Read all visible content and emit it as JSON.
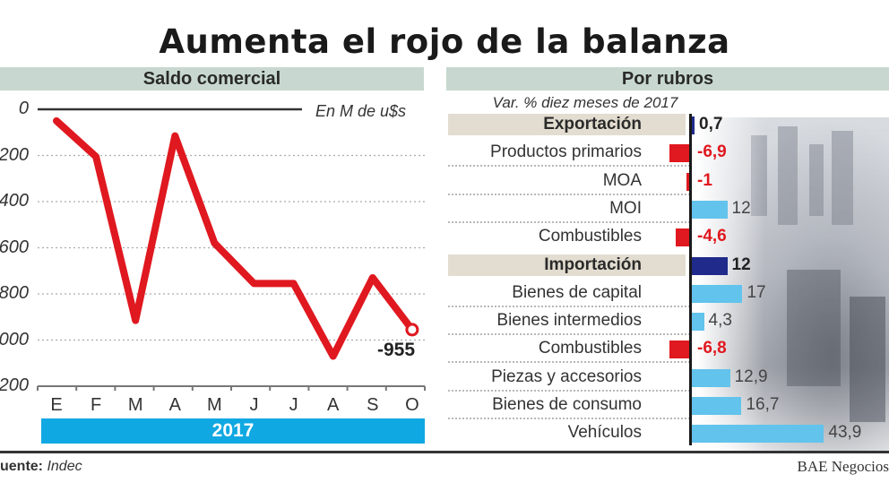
{
  "title": "Aumenta el rojo de la balanza",
  "left_panel": {
    "header": "Saldo comercial",
    "units": "En M de u$s",
    "end_label": "-955",
    "year": "2017"
  },
  "right_panel": {
    "header": "Por rubros",
    "subtitle": "Var. % diez meses de 2017"
  },
  "footer": {
    "source_label": "uente:",
    "source_value": "Indec",
    "credit": "BAE Negocios"
  },
  "colors": {
    "line": "#e0181f",
    "negative_bar": "#e0181f",
    "positive_bar": "#62c3ec",
    "section_bar": "#1f2a8a",
    "year_bar": "#10a8e2",
    "header_bg": "#c8d8d0",
    "section_bg": "#e2ddd0"
  },
  "chart_data": [
    {
      "type": "line",
      "title": "Saldo comercial",
      "ylabel": "En M de u$s",
      "xlabel": "2017",
      "categories": [
        "E",
        "F",
        "M",
        "A",
        "M",
        "J",
        "J",
        "A",
        "S",
        "O"
      ],
      "yticks": [
        "0",
        "-200",
        "-400",
        "-600",
        "-800",
        "-1000",
        "-1200"
      ],
      "ytick_values": [
        0,
        -200,
        -400,
        -600,
        -800,
        -1000,
        -1200
      ],
      "ylim": [
        -1200,
        0
      ],
      "grid": true,
      "series": [
        {
          "name": "Saldo comercial",
          "values": [
            -50,
            -205,
            -915,
            -115,
            -580,
            -755,
            -755,
            -1070,
            -730,
            -955
          ]
        }
      ],
      "annotations": [
        {
          "x": "O",
          "text": "-955"
        }
      ]
    },
    {
      "type": "bar",
      "orientation": "horizontal",
      "title": "Por rubros",
      "subtitle": "Var. % diez meses de 2017",
      "rows": [
        {
          "label": "Exportación",
          "value": 0.7,
          "display": "0,7",
          "kind": "section"
        },
        {
          "label": "Productos primarios",
          "value": -6.9,
          "display": "-6,9",
          "kind": "item"
        },
        {
          "label": "MOA",
          "value": -1,
          "display": "-1",
          "kind": "item"
        },
        {
          "label": "MOI",
          "value": 12,
          "display": "12",
          "kind": "item"
        },
        {
          "label": "Combustibles",
          "value": -4.6,
          "display": "-4,6",
          "kind": "item"
        },
        {
          "label": "Importación",
          "value": 12,
          "display": "12",
          "kind": "section"
        },
        {
          "label": "Bienes de capital",
          "value": 17,
          "display": "17",
          "kind": "item"
        },
        {
          "label": "Bienes intermedios",
          "value": 4.3,
          "display": "4,3",
          "kind": "item"
        },
        {
          "label": "Combustibles",
          "value": -6.8,
          "display": "-6,8",
          "kind": "item"
        },
        {
          "label": "Piezas y accesorios",
          "value": 12.9,
          "display": "12,9",
          "kind": "item"
        },
        {
          "label": "Bienes de consumo",
          "value": 16.7,
          "display": "16,7",
          "kind": "item"
        },
        {
          "label": "Vehículos",
          "value": 43.9,
          "display": "43,9",
          "kind": "item"
        }
      ]
    }
  ]
}
